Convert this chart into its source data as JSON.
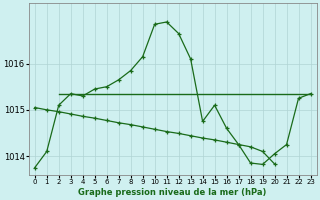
{
  "title": "Graphe pression niveau de la mer (hPa)",
  "bg_color": "#cff0f0",
  "grid_color": "#b0d4d4",
  "line_color": "#1a6b1a",
  "x_ticks": [
    0,
    1,
    2,
    3,
    4,
    5,
    6,
    7,
    8,
    9,
    10,
    11,
    12,
    13,
    14,
    15,
    16,
    17,
    18,
    19,
    20,
    21,
    22,
    23
  ],
  "ylim": [
    1013.6,
    1017.3
  ],
  "yticks": [
    1014,
    1015,
    1016
  ],
  "line1_x": [
    0,
    1,
    2,
    3,
    4,
    5,
    6,
    7,
    8,
    9,
    10,
    11,
    12,
    13,
    14,
    15,
    16,
    17,
    18,
    19,
    20,
    21,
    22,
    23
  ],
  "line1_y": [
    1013.75,
    1014.1,
    1015.1,
    1015.35,
    1015.3,
    1015.45,
    1015.5,
    1015.65,
    1015.85,
    1016.15,
    1016.85,
    1016.9,
    1016.65,
    1016.1,
    1014.75,
    1015.1,
    1014.6,
    1014.25,
    1013.85,
    1013.82,
    1014.05,
    1014.25,
    1015.25,
    1015.35
  ],
  "line2_x": [
    0,
    1,
    2,
    3,
    4,
    5,
    6,
    7,
    8,
    9,
    10,
    11,
    12,
    13,
    14,
    15,
    16,
    17,
    18,
    19,
    20
  ],
  "line2_y": [
    1015.05,
    1015.0,
    1014.96,
    1014.91,
    1014.86,
    1014.82,
    1014.77,
    1014.72,
    1014.68,
    1014.63,
    1014.58,
    1014.53,
    1014.49,
    1014.44,
    1014.39,
    1014.35,
    1014.3,
    1014.25,
    1014.2,
    1014.1,
    1013.83
  ],
  "line3_x": [
    2,
    23
  ],
  "line3_y": [
    1015.35,
    1015.35
  ],
  "ylabel_fontsize": 6,
  "xlabel_fontsize": 6,
  "tick_fontsize": 5
}
